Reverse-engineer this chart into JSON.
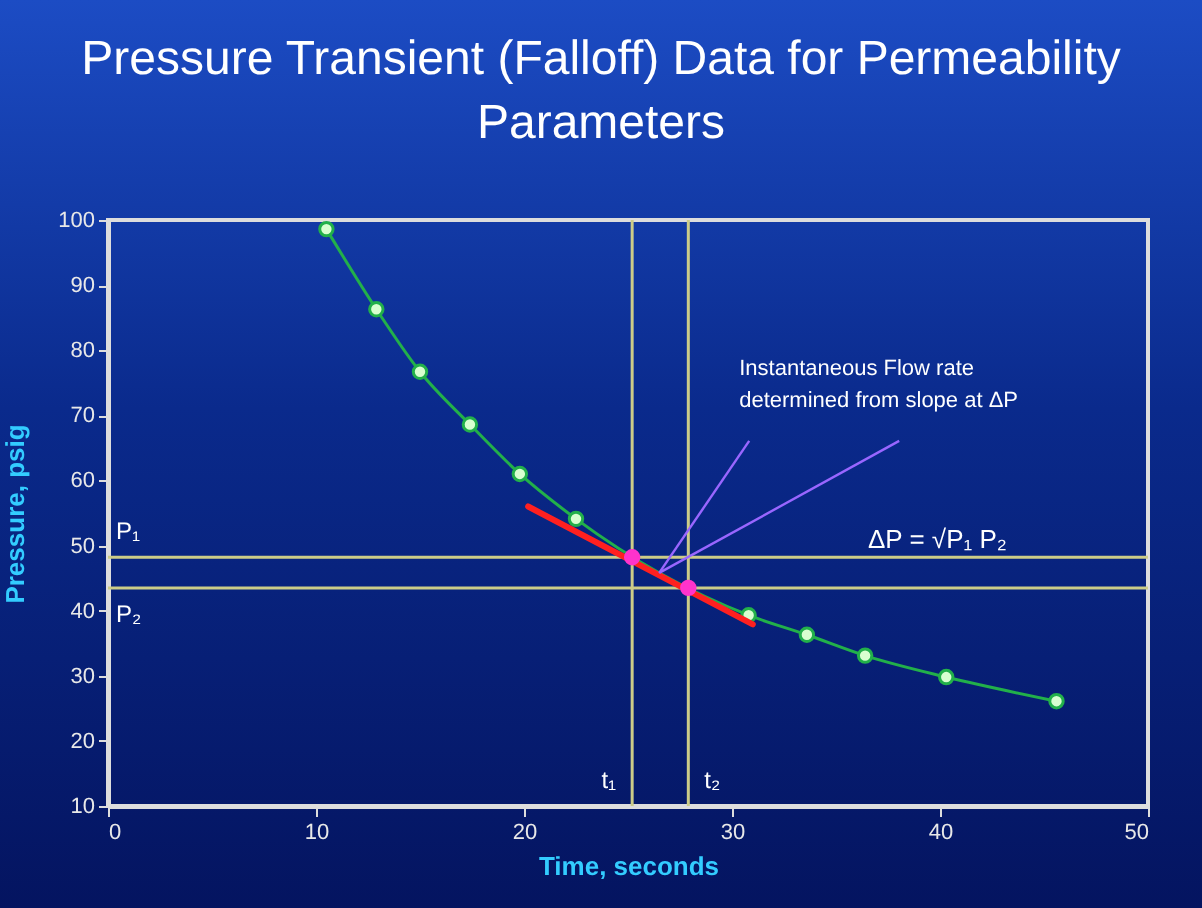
{
  "chart_data": {
    "type": "line",
    "title": "Pressure Transient (Falloff) Data for Permeability Parameters",
    "xlabel": "Time, seconds",
    "ylabel": "Pressure, psig",
    "series": [
      {
        "color": "#22b04a",
        "marker": "circle",
        "x": [
          10.5,
          12.9,
          15.0,
          17.4,
          19.8,
          22.5,
          30.8,
          33.6,
          36.4,
          40.3,
          45.6
        ],
        "values": [
          98.6,
          86.3,
          76.7,
          68.6,
          61.0,
          54.1,
          39.3,
          36.3,
          33.1,
          29.8,
          26.1
        ]
      },
      {
        "color": "#ff2020",
        "marker": "none",
        "x": [
          20.2,
          31.0
        ],
        "values": [
          56.0,
          37.9
        ]
      },
      {
        "type": "scatter",
        "color": "#ff33cc",
        "marker": "circle",
        "x": [
          25.2,
          27.9
        ],
        "values": [
          48.2,
          43.5
        ]
      }
    ],
    "ref_lines": [
      {
        "axis": "y",
        "value": 48.2,
        "label": "P₁",
        "color": "#cccc88"
      },
      {
        "axis": "y",
        "value": 43.5,
        "label": "P₂",
        "color": "#cccc88"
      },
      {
        "axis": "x",
        "value": 25.2,
        "label": "t₁",
        "color": "#cccc88"
      },
      {
        "axis": "x",
        "value": 27.9,
        "label": "t₂",
        "color": "#cccc88"
      }
    ],
    "annotations": [
      {
        "text": "Instantaneous Flow rate\ndetermined from slope at ΔP",
        "x": 26.5,
        "y": 45.8
      },
      "ΔP = √P₁ P₂"
    ],
    "xlim": [
      0,
      50
    ],
    "xticks": [
      0,
      10,
      20,
      30,
      40,
      50
    ],
    "ylim": [
      10,
      100
    ],
    "yticks": [
      10,
      20,
      30,
      40,
      50,
      60,
      70,
      80,
      90,
      100
    ],
    "grid": false
  }
}
